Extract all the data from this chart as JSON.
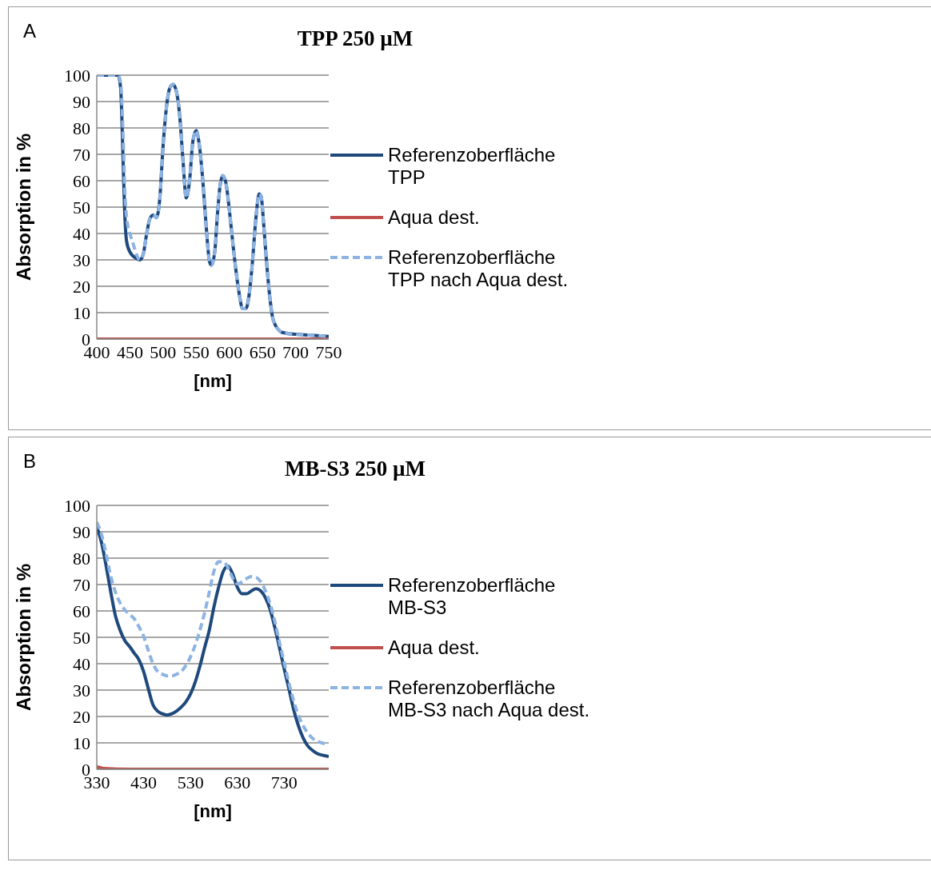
{
  "chart_data": [
    {
      "type": "line",
      "title": "TPP 250 µM",
      "xlabel": "[nm]",
      "ylabel": "Absorption in %",
      "annotations": [
        "A"
      ],
      "xlim": [
        400,
        750
      ],
      "xticks": [
        400,
        450,
        500,
        550,
        600,
        650,
        700,
        750
      ],
      "ylim": [
        0,
        100
      ],
      "yticks": [
        0,
        10,
        20,
        30,
        40,
        50,
        60,
        70,
        80,
        90,
        100
      ],
      "grid": "y",
      "legend": "right",
      "marker": "none",
      "series": [
        {
          "name": "Referenzoberfläche TPP",
          "color": "#1f497d",
          "line_style": "solid",
          "x": [
            400,
            432,
            436,
            440,
            442,
            445,
            450,
            460,
            465,
            470,
            475,
            480,
            485,
            490,
            495,
            500,
            505,
            510,
            515,
            520,
            525,
            530,
            535,
            540,
            545,
            550,
            555,
            560,
            565,
            570,
            573,
            578,
            582,
            586,
            590,
            595,
            600,
            605,
            610,
            615,
            620,
            625,
            630,
            635,
            640,
            645,
            648,
            652,
            655,
            660,
            665,
            670,
            675,
            680,
            700,
            720,
            750
          ],
          "values": [
            100,
            100,
            95,
            65,
            49,
            37,
            33,
            30.5,
            30,
            32,
            39.5,
            45.5,
            47,
            46,
            53,
            73,
            87.5,
            95,
            96.5,
            94,
            85,
            68,
            53.5,
            60,
            75,
            79,
            73,
            60,
            43,
            29.5,
            28,
            33,
            47,
            58,
            62,
            59,
            49,
            37,
            26,
            17,
            11.5,
            11.5,
            17,
            29.5,
            45.5,
            55,
            54,
            43,
            33,
            18.5,
            8.5,
            5,
            3.3,
            2.5,
            1.8,
            1.5,
            1
          ]
        },
        {
          "name": "Aqua dest.",
          "color": "#c0504d",
          "line_style": "solid",
          "x": [
            400,
            750
          ],
          "values": [
            0,
            0
          ]
        },
        {
          "name": "Referenzoberfläche TPP nach Aqua dest.",
          "color": "#8db3e2",
          "line_style": "dashed",
          "x": [
            400,
            432,
            436,
            440,
            442,
            445,
            450,
            455,
            460,
            465,
            470,
            475,
            480,
            485,
            490,
            495,
            500,
            505,
            510,
            515,
            520,
            525,
            530,
            535,
            540,
            545,
            550,
            555,
            560,
            565,
            570,
            573,
            578,
            582,
            586,
            590,
            595,
            600,
            605,
            610,
            615,
            620,
            625,
            630,
            635,
            640,
            645,
            648,
            652,
            655,
            660,
            665,
            670,
            675,
            680,
            700,
            720,
            750
          ],
          "values": [
            100,
            100,
            97,
            75,
            58,
            46,
            40,
            36,
            32,
            30,
            32,
            39.5,
            45.5,
            47,
            46,
            53,
            73,
            87.5,
            95,
            96.5,
            94,
            85,
            68,
            53.5,
            60,
            75,
            79,
            73,
            60,
            43,
            29.5,
            28,
            33,
            47,
            58,
            62,
            59,
            49,
            37,
            26,
            17,
            11.5,
            11.5,
            17,
            29.5,
            45.5,
            55,
            54,
            43,
            33,
            18.5,
            8.5,
            5,
            3.3,
            2.5,
            1.8,
            1.5,
            1
          ]
        }
      ]
    },
    {
      "type": "line",
      "title": "MB-S3 250 µM",
      "xlabel": "[nm]",
      "ylabel": "Absorption in %",
      "annotations": [
        "B"
      ],
      "xlim": [
        330,
        825
      ],
      "xticks": [
        330,
        430,
        530,
        630,
        730
      ],
      "ylim": [
        0,
        100
      ],
      "yticks": [
        0,
        10,
        20,
        30,
        40,
        50,
        60,
        70,
        80,
        90,
        100
      ],
      "grid": "y",
      "legend": "right",
      "marker": "none",
      "series": [
        {
          "name": "Referenzoberfläche MB-S3",
          "color": "#1f497d",
          "line_style": "solid",
          "x": [
            330,
            340,
            350,
            360,
            370,
            380,
            390,
            400,
            410,
            420,
            430,
            440,
            450,
            460,
            470,
            480,
            490,
            500,
            510,
            520,
            530,
            540,
            550,
            560,
            570,
            580,
            590,
            600,
            610,
            620,
            630,
            640,
            650,
            660,
            670,
            680,
            690,
            700,
            710,
            720,
            730,
            740,
            750,
            760,
            770,
            780,
            790,
            800,
            810,
            825
          ],
          "values": [
            91.9,
            86,
            77,
            67,
            58,
            52.6,
            48.7,
            46.5,
            44,
            41.5,
            37,
            30.5,
            24.4,
            22,
            21,
            20.5,
            21,
            22,
            23.5,
            25.5,
            28.5,
            33,
            39,
            46,
            52.6,
            61.5,
            69,
            75,
            77,
            74,
            69,
            66.5,
            66.5,
            67.6,
            68.4,
            67.6,
            65,
            60.5,
            53.7,
            46,
            38,
            30.5,
            22.7,
            16.6,
            12,
            8.9,
            7.2,
            6,
            5.4,
            4.8
          ]
        },
        {
          "name": "Aqua dest.",
          "color": "#c0504d",
          "line_style": "solid",
          "x": [
            330,
            345,
            400,
            825
          ],
          "values": [
            1,
            0.3,
            0,
            0
          ]
        },
        {
          "name": "Referenzoberfläche MB-S3 nach Aqua dest.",
          "color": "#8db3e2",
          "line_style": "dashed",
          "x": [
            330,
            340,
            350,
            360,
            370,
            380,
            390,
            400,
            410,
            420,
            430,
            440,
            450,
            460,
            470,
            480,
            490,
            500,
            510,
            520,
            530,
            540,
            550,
            560,
            570,
            580,
            590,
            600,
            610,
            620,
            630,
            640,
            650,
            660,
            670,
            680,
            690,
            700,
            710,
            720,
            730,
            740,
            750,
            760,
            770,
            780,
            790,
            800,
            810,
            825
          ],
          "values": [
            93.6,
            89,
            81.4,
            73,
            67,
            63,
            60.4,
            58.7,
            57,
            54,
            50.4,
            45,
            40,
            37,
            36,
            35.4,
            35.4,
            36,
            37,
            39.3,
            42.6,
            47,
            52.6,
            59.2,
            67,
            75,
            78.6,
            78.6,
            76.4,
            72.5,
            70.3,
            71,
            72.3,
            73,
            72.7,
            71,
            67.6,
            62.6,
            56,
            48,
            40.4,
            32.7,
            26,
            20.5,
            16.6,
            13.8,
            11.8,
            10.7,
            10,
            9.4
          ]
        }
      ]
    }
  ]
}
